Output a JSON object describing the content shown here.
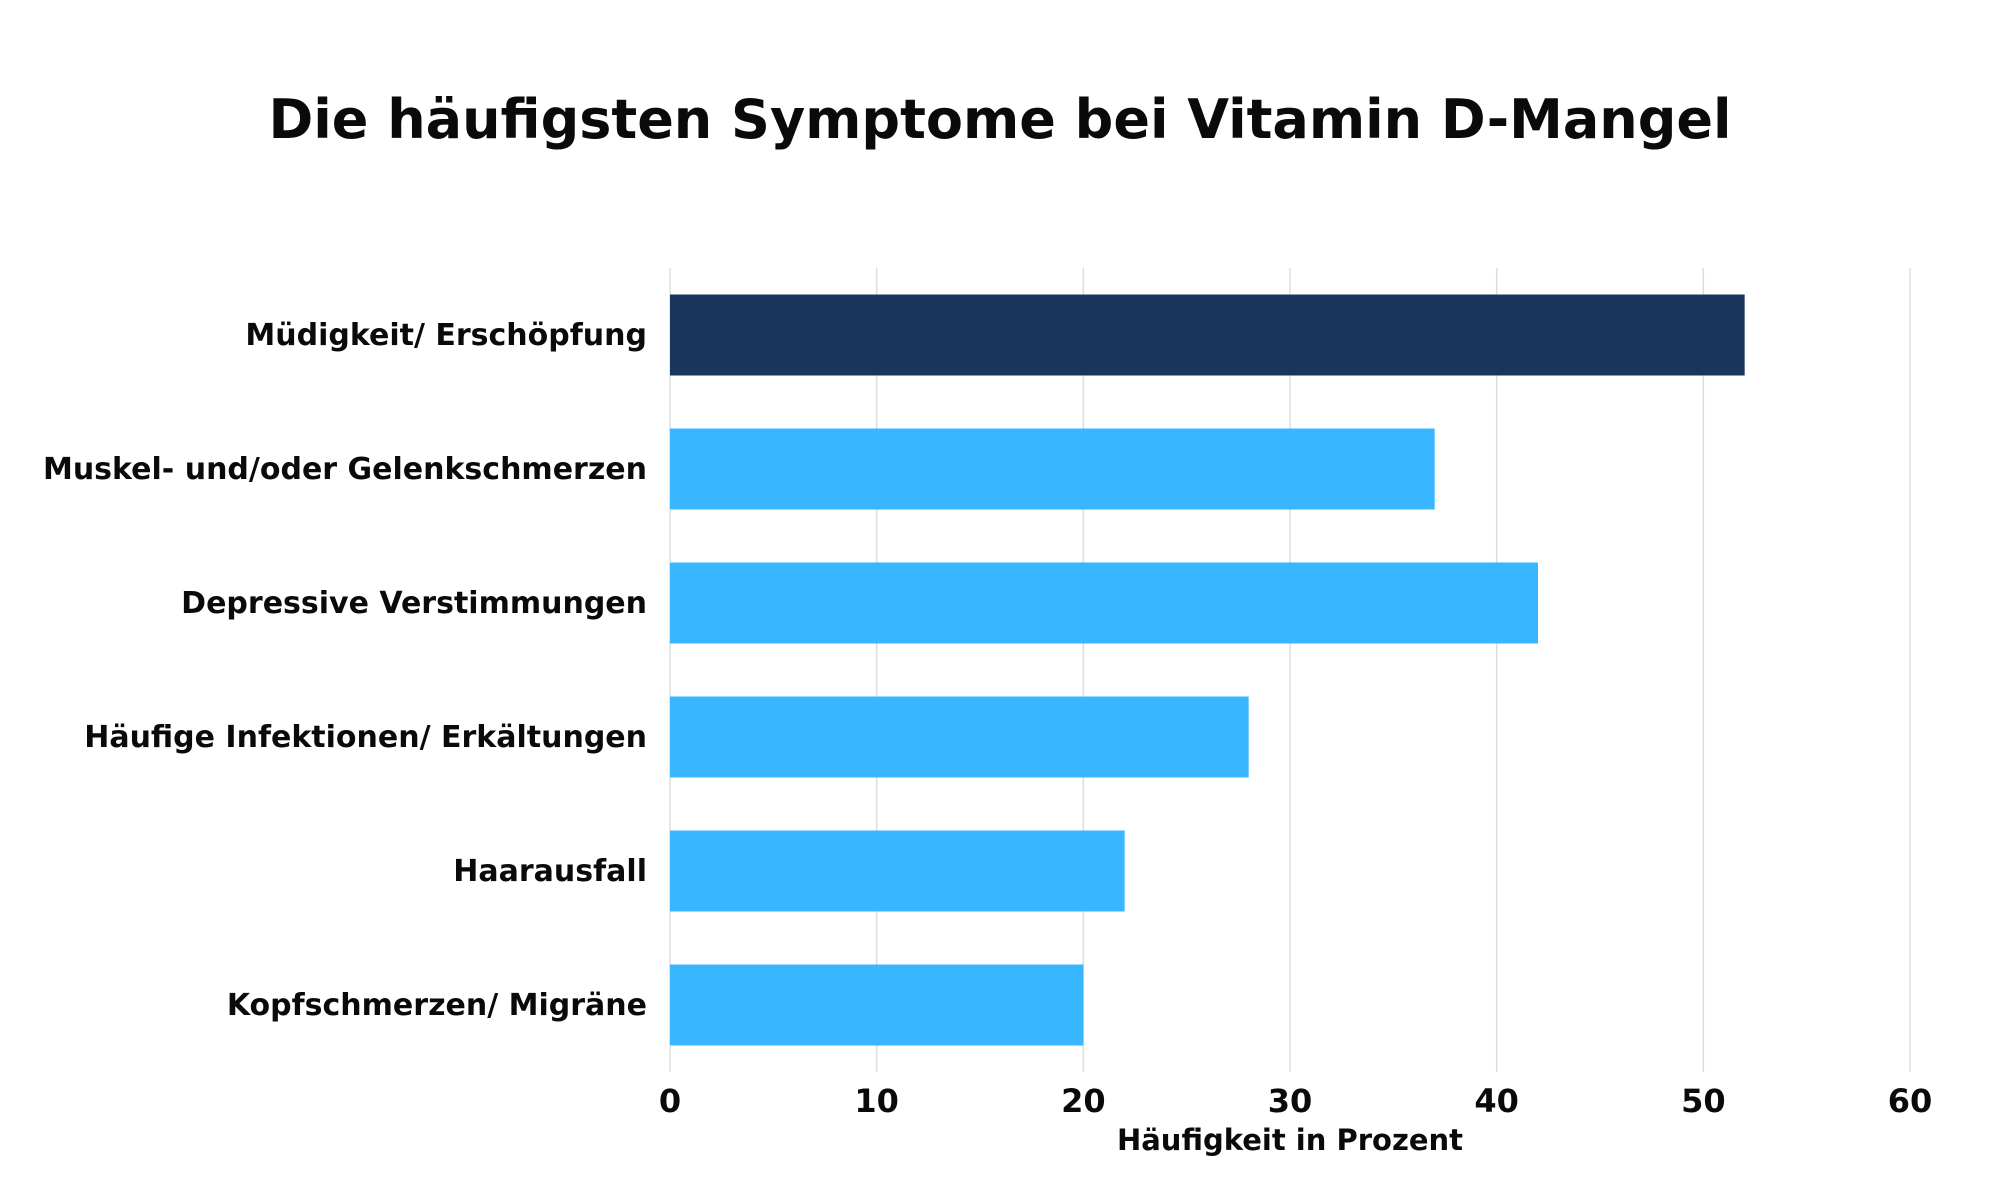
{
  "chart_data": {
    "type": "bar",
    "orientation": "horizontal",
    "title": "Die häufigsten Symptome bei Vitamin D-Mangel",
    "xlabel": "Häufigkeit in Prozent",
    "ylabel": "",
    "categories": [
      "Müdigkeit/ Erschöpfung",
      "Muskel- und/oder Gelenkschmerzen",
      "Depressive Verstimmungen",
      "Häufige Infektionen/ Erkältungen",
      "Haarausfall",
      "Kopfschmerzen/ Migräne"
    ],
    "values": [
      52,
      37,
      42,
      28,
      22,
      20
    ],
    "highlight_index": 0,
    "xlim": [
      0,
      60
    ],
    "xticks": [
      0,
      10,
      20,
      30,
      40,
      50,
      60
    ],
    "grid": "vertical",
    "colors": {
      "highlight": "#1b365d",
      "bar": "#38b6ff",
      "grid": "#dddddd",
      "text": "#0a0a0a"
    }
  }
}
